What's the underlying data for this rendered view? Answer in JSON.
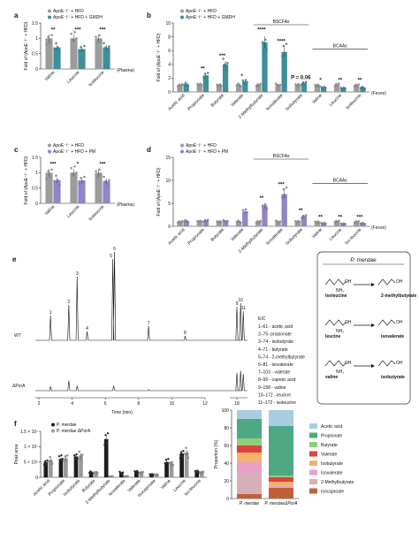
{
  "chart_data": [
    {
      "id": "a",
      "type": "bar",
      "panel_label": "a",
      "categories": [
        "Valine",
        "Leucine",
        "Isoleucine"
      ],
      "series": [
        {
          "name": "ApoE⁻/⁻ + HFD",
          "values": [
            1.0,
            1.0,
            1.0
          ],
          "color": "#9c9c9c"
        },
        {
          "name": "ApoE⁻/⁻ + HFD + GMDH",
          "values": [
            0.7,
            0.65,
            0.7
          ],
          "color": "#3d8f9a"
        }
      ],
      "ylabel": "Fold of (ApoE⁻/⁻ + HFD)",
      "ylim": [
        0,
        1.5
      ],
      "yticks": [
        0,
        0.5,
        1.0,
        1.5
      ],
      "significance": [
        "**",
        "***",
        "***"
      ],
      "note": "(Plasma)"
    },
    {
      "id": "b",
      "type": "bar",
      "panel_label": "b",
      "categories": [
        "Acetic acid",
        "Propionate",
        "Butyrate",
        "Valerate",
        "2-Methylbutyrate",
        "Isovalerate",
        "Isobutyrate",
        "Valine",
        "Leucine",
        "Isoleucine"
      ],
      "series": [
        {
          "name": "ApoE⁻/⁻ + HFD",
          "values": [
            1.0,
            1.0,
            1.0,
            1.0,
            1.0,
            1.0,
            1.0,
            1.0,
            1.0,
            1.0
          ],
          "color": "#9c9c9c"
        },
        {
          "name": "ApoE⁻/⁻ + HFD + GMDH",
          "values": [
            1.1,
            2.4,
            4.0,
            1.5,
            7.2,
            5.8,
            1.3,
            0.6,
            0.55,
            0.6
          ],
          "color": "#3d8f9a"
        }
      ],
      "ylabel": "Fold of (ApoE⁻/⁻ + HFD)",
      "ylim": [
        0,
        10
      ],
      "yticks": [
        0,
        2,
        4,
        6,
        8,
        10
      ],
      "significance": [
        "",
        "**",
        "***",
        "*",
        "****",
        "****",
        "P = 0.06",
        "*",
        "**",
        "**"
      ],
      "groups": [
        {
          "label": "BSCFAs",
          "from": 4,
          "to": 6
        },
        {
          "label": "BCAAs",
          "from": 7,
          "to": 9
        }
      ],
      "note": "(Feces)"
    },
    {
      "id": "c",
      "type": "bar",
      "panel_label": "c",
      "categories": [
        "Valine",
        "Leucine",
        "Isoleucine"
      ],
      "series": [
        {
          "name": "ApoE⁻/⁻ + HFD",
          "values": [
            1.0,
            1.0,
            1.0
          ],
          "color": "#9c9c9c"
        },
        {
          "name": "ApoE⁻/⁻ + HFD + PM",
          "values": [
            0.75,
            0.75,
            0.72
          ],
          "color": "#8e86c8"
        }
      ],
      "ylabel": "Fold of (ApoE⁻/⁻ + HFD)",
      "ylim": [
        0,
        1.5
      ],
      "yticks": [
        0,
        0.5,
        1.0,
        1.5
      ],
      "significance": [
        "***",
        "*",
        "***"
      ],
      "note": "(Plasma)"
    },
    {
      "id": "d",
      "type": "bar",
      "panel_label": "d",
      "categories": [
        "Acetic acid",
        "Propionate",
        "Butyrate",
        "Valerate",
        "2-Methylbutyrate",
        "Isovalerate",
        "Isobutyrate",
        "Valine",
        "Leucine",
        "Iso leucine"
      ],
      "series": [
        {
          "name": "ApoE⁻/⁻ + HFD",
          "values": [
            1.0,
            1.0,
            1.0,
            1.0,
            1.0,
            1.0,
            1.0,
            1.0,
            1.0,
            1.0
          ],
          "color": "#9c9c9c"
        },
        {
          "name": "ApoE⁻/⁻ + HFD + PM",
          "values": [
            1.1,
            1.2,
            1.1,
            3.2,
            4.5,
            7.0,
            2.2,
            0.6,
            0.55,
            0.6
          ],
          "color": "#8e86c8"
        }
      ],
      "ylabel": "Fold of (ApoE⁻/⁻ + HFD)",
      "ylim": [
        0,
        15
      ],
      "yticks": [
        0,
        5,
        10,
        15
      ],
      "significance": [
        "",
        "",
        "",
        "",
        "**",
        "***",
        "**",
        "**",
        "**",
        "***"
      ],
      "groups": [
        {
          "label": "BSCFAs",
          "from": 4,
          "to": 6
        },
        {
          "label": "BCAAs",
          "from": 7,
          "to": 9
        }
      ],
      "note": "(Feces)"
    },
    {
      "id": "e",
      "type": "line",
      "panel_label": "e",
      "xlabel": "Time (min)",
      "xticks": [
        2,
        4,
        6,
        8,
        10,
        12,
        18
      ],
      "traces": [
        {
          "name": "WT"
        },
        {
          "name": "ΔPorA"
        }
      ],
      "peaks_wt": [
        {
          "id": "1",
          "t": 2.7,
          "h": 0.28
        },
        {
          "id": "2",
          "t": 3.8,
          "h": 0.4
        },
        {
          "id": "3",
          "t": 4.3,
          "h": 0.72
        },
        {
          "id": "4",
          "t": 4.9,
          "h": 0.1
        },
        {
          "id": "5",
          "t": 6.45,
          "h": 0.92
        },
        {
          "id": "6",
          "t": 6.55,
          "h": 1.0
        },
        {
          "id": "7",
          "t": 8.6,
          "h": 0.16
        },
        {
          "id": "8",
          "t": 10.8,
          "h": 0.05
        },
        {
          "id": "9",
          "t": 18.0,
          "h": 0.38
        },
        {
          "id": "10",
          "t": 18.35,
          "h": 0.42
        },
        {
          "id": "11",
          "t": 18.6,
          "h": 0.33
        }
      ],
      "peaks_mut": [
        {
          "t": 2.7,
          "h": 0.1
        },
        {
          "t": 3.8,
          "h": 0.25
        },
        {
          "t": 4.3,
          "h": 0.12
        },
        {
          "t": 6.5,
          "h": 0.12
        },
        {
          "t": 8.6,
          "h": 0.03
        },
        {
          "t": 18.0,
          "h": 0.45
        },
        {
          "t": 18.35,
          "h": 0.5
        },
        {
          "t": 18.6,
          "h": 0.42
        }
      ],
      "eic_title": "EIC",
      "eic": [
        "1–61 - acetic acid",
        "2–75- propionate",
        "3–74 - isobutyrate",
        "4–71 - butyrate",
        "5–74 - 2-methylbutyrate",
        "6–81 - isovalerate",
        "7–103 - valerate",
        "8–99 - caproic acid",
        "9–158 - valine",
        "10–172 - leucine",
        "11–172 - isoleucine"
      ],
      "pathway": {
        "title": "P. merdae",
        "rows": [
          {
            "substrate": "Isoleucine",
            "product": "2-methylbutyrate"
          },
          {
            "substrate": "leucine",
            "product": "isovalerate"
          },
          {
            "substrate": "valine",
            "product": "isobutyrate"
          }
        ]
      }
    },
    {
      "id": "f1",
      "type": "bar",
      "panel_label": "f",
      "categories": [
        "Acetic acid",
        "Propionate",
        "Isobutyrate",
        "Butyrate",
        "2-Methylbutyrate",
        "Isovalerate",
        "Valerate",
        "Isocaproate",
        "Valine",
        "Leucine",
        "Iso-leucine"
      ],
      "series": [
        {
          "name": "P. merdae",
          "values": [
            5.0,
            6.0,
            6.8,
            1.6,
            12.5,
            1.5,
            1.8,
            1.0,
            5.0,
            7.8,
            1.8
          ],
          "color": "#1c1c1c"
        },
        {
          "name": "P. merdae ΔPorA",
          "values": [
            5.5,
            6.2,
            7.0,
            1.5,
            0.3,
            0.3,
            1.6,
            0.8,
            4.5,
            8.0,
            1.6
          ],
          "color": "#9a9a9a"
        }
      ],
      "ylabel": "Peak area",
      "ylim": [
        0,
        15
      ],
      "yticks": [
        0,
        5,
        10,
        15
      ],
      "ytick_labels": [
        "0",
        "5 × 10⁶",
        "1 × 10⁷",
        "1.5 × 10⁷"
      ]
    },
    {
      "id": "f2",
      "type": "bar",
      "stacked": true,
      "categories": [
        "P. merdae",
        "P. merdaeΔPorA"
      ],
      "ylabel": "Proportion (%)",
      "ylim": [
        0,
        100
      ],
      "yticks": [
        0,
        20,
        40,
        60,
        80,
        100
      ],
      "series": [
        {
          "name": "Acetic acid",
          "color": "#a9cde0",
          "values": [
            10,
            18
          ]
        },
        {
          "name": "Propionate",
          "color": "#4fa884",
          "values": [
            22,
            56
          ]
        },
        {
          "name": "Butyrate",
          "color": "#8ed07a",
          "values": [
            8,
            2
          ]
        },
        {
          "name": "Valerate",
          "color": "#e04040",
          "values": [
            8,
            5
          ]
        },
        {
          "name": "Isobutyrate",
          "color": "#f4b26a",
          "values": [
            11,
            5
          ]
        },
        {
          "name": "Isovalerate",
          "color": "#e8a0c6",
          "values": [
            12,
            1
          ]
        },
        {
          "name": "2-Methylbutyrate",
          "color": "#d6b0b8",
          "values": [
            24,
            1
          ]
        },
        {
          "name": "Isocaproate",
          "color": "#c0603a",
          "values": [
            5,
            12
          ]
        }
      ]
    }
  ]
}
